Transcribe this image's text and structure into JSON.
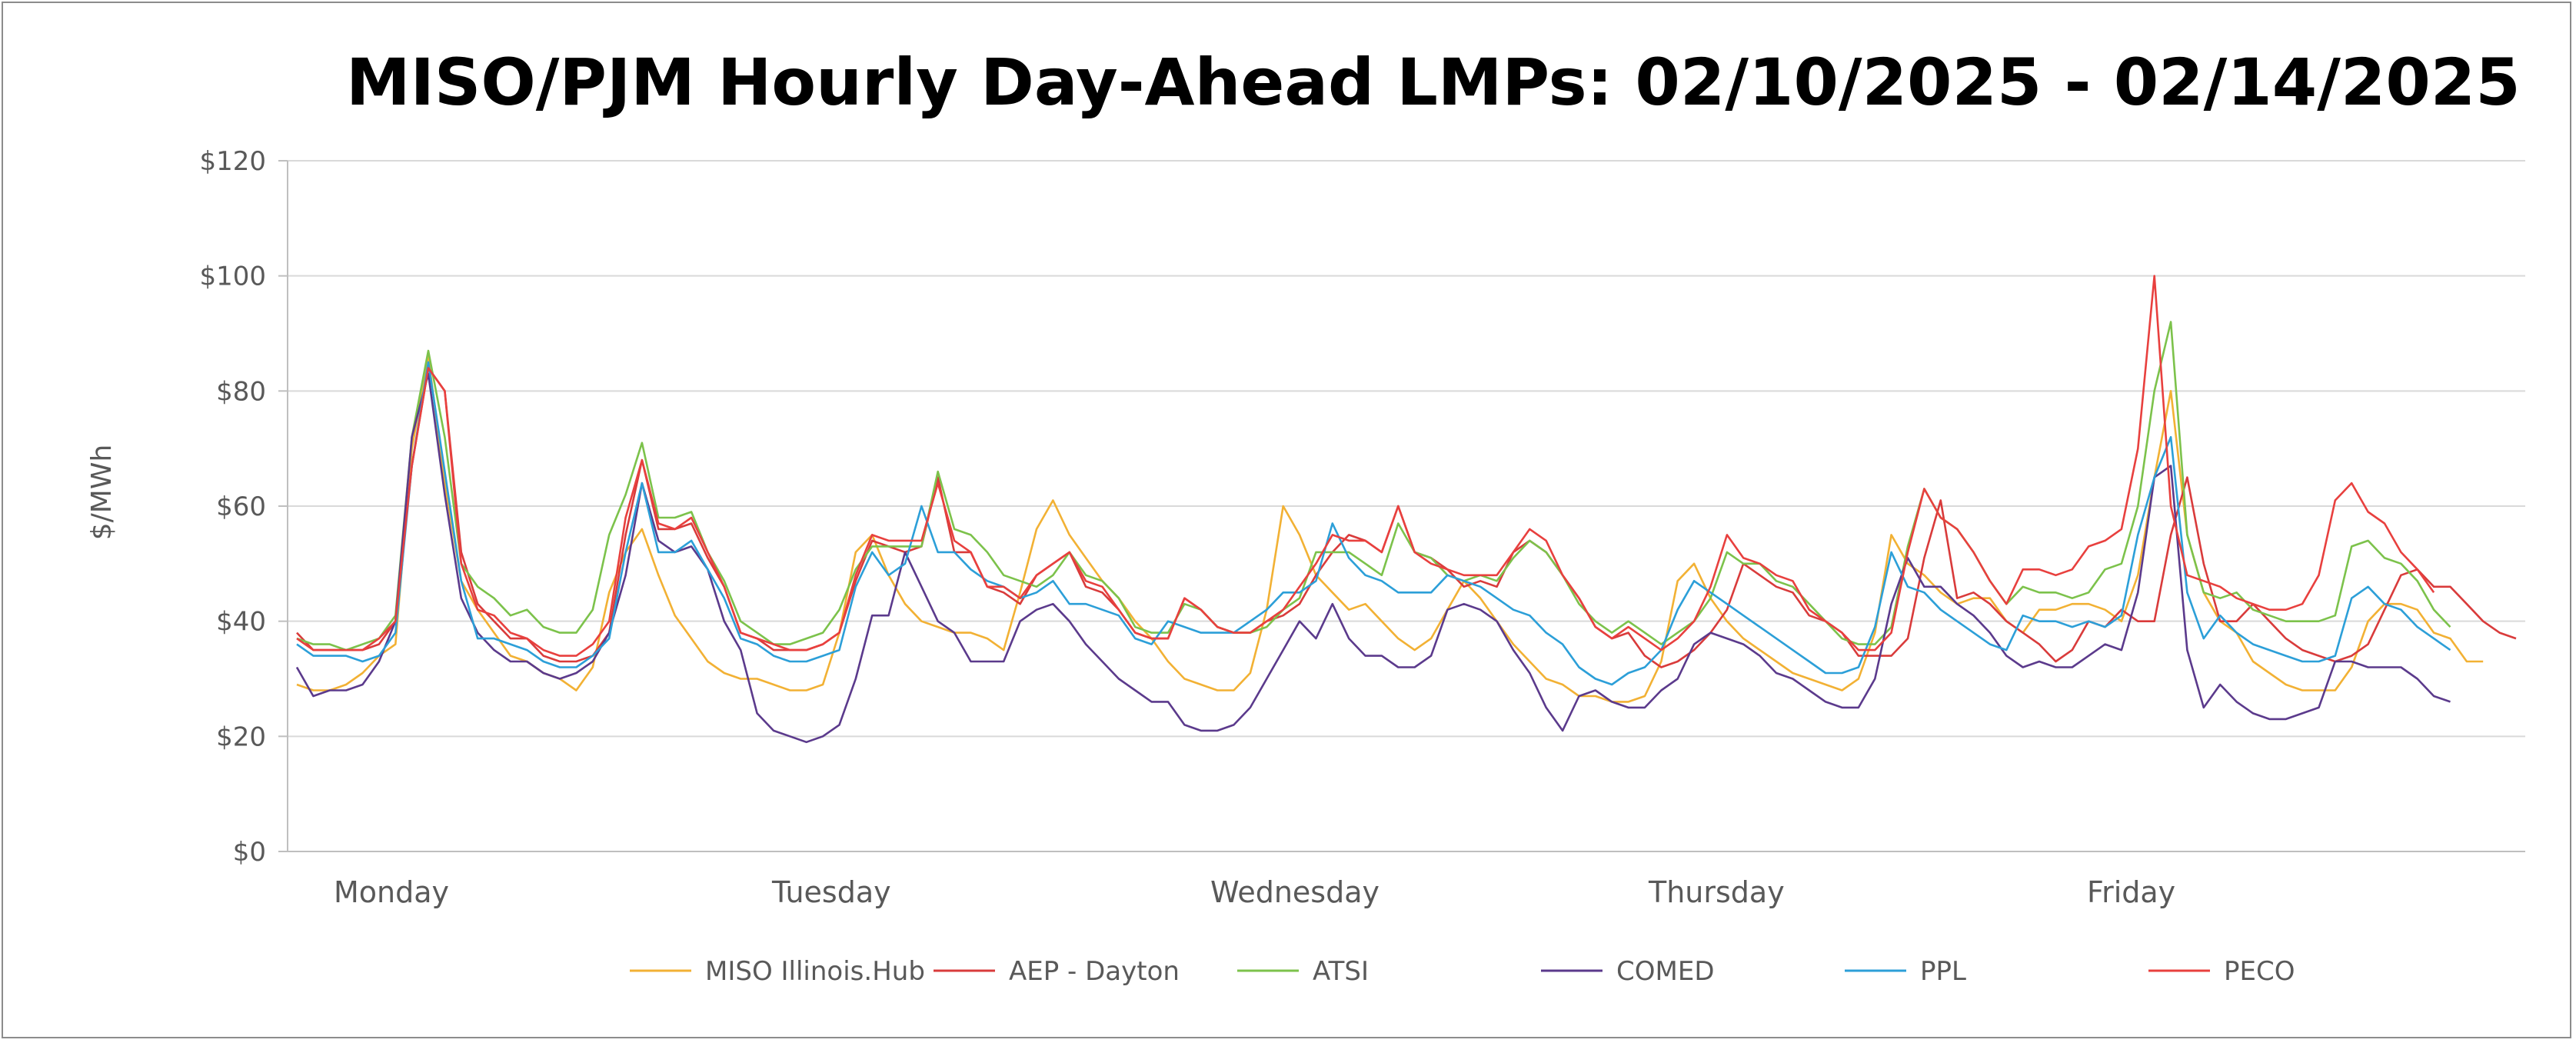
{
  "chart_data": {
    "type": "line",
    "title": "MISO/PJM Hourly Day-Ahead LMPs: 02/10/2025 - 02/14/2025",
    "ylabel": "$/MWh",
    "xlabel": "",
    "ylim": [
      0,
      120
    ],
    "yticks": [
      0,
      20,
      40,
      60,
      80,
      100,
      120
    ],
    "ytick_labels": [
      "$0",
      "$20",
      "$40",
      "$60",
      "$80",
      "$100",
      "$120"
    ],
    "day_labels": [
      "Monday",
      "Tuesday",
      "Wednesday",
      "Thursday",
      "Friday"
    ],
    "x_hours": 120,
    "grid": true,
    "legend_position": "bottom",
    "series": [
      {
        "name": "MISO Illinois.Hub",
        "color": "#F2B134",
        "values": [
          29,
          28,
          28,
          29,
          31,
          34,
          36,
          70,
          86,
          64,
          47,
          42,
          38,
          34,
          33,
          31,
          30,
          28,
          32,
          45,
          52,
          56,
          48,
          41,
          37,
          33,
          31,
          30,
          30,
          29,
          28,
          28,
          29,
          38,
          52,
          55,
          48,
          43,
          40,
          39,
          38,
          38,
          37,
          35,
          45,
          56,
          61,
          55,
          51,
          47,
          44,
          40,
          37,
          33,
          30,
          29,
          28,
          28,
          31,
          42,
          60,
          55,
          48,
          45,
          42,
          43,
          40,
          37,
          35,
          37,
          42,
          47,
          44,
          40,
          36,
          33,
          30,
          29,
          27,
          27,
          26,
          26,
          27,
          33,
          47,
          50,
          44,
          40,
          37,
          35,
          33,
          31,
          30,
          29,
          28,
          30,
          38,
          55,
          50,
          48,
          45,
          43,
          44,
          44,
          40,
          38,
          42,
          42,
          43,
          43,
          42,
          40,
          48,
          65,
          80,
          55,
          45,
          40,
          38,
          33,
          31,
          29,
          28,
          28,
          28,
          32,
          40,
          43,
          43,
          42,
          38,
          37,
          33,
          33
        ]
      },
      {
        "name": "AEP - Dayton",
        "color": "#D93B3B",
        "values": [
          38,
          35,
          35,
          35,
          35,
          36,
          40,
          67,
          84,
          80,
          52,
          43,
          40,
          37,
          37,
          34,
          33,
          33,
          34,
          38,
          55,
          68,
          56,
          56,
          57,
          51,
          46,
          38,
          37,
          35,
          35,
          35,
          36,
          38,
          47,
          54,
          53,
          52,
          53,
          65,
          52,
          52,
          46,
          45,
          43,
          48,
          50,
          52,
          46,
          45,
          42,
          38,
          37,
          37,
          44,
          42,
          39,
          38,
          38,
          40,
          41,
          43,
          48,
          52,
          55,
          54,
          52,
          60,
          52,
          51,
          49,
          46,
          47,
          46,
          52,
          54,
          52,
          48,
          44,
          39,
          37,
          38,
          34,
          32,
          33,
          35,
          38,
          42,
          50,
          48,
          46,
          45,
          41,
          40,
          38,
          34,
          34,
          34,
          37,
          51,
          61,
          44,
          45,
          43,
          40,
          38,
          36,
          33,
          35,
          40,
          39,
          42,
          40,
          40,
          55,
          65,
          50,
          40,
          40,
          43,
          40,
          37,
          35,
          34,
          33,
          34,
          36,
          42,
          48,
          49,
          46,
          46,
          43,
          40,
          38,
          37
        ]
      },
      {
        "name": "ATSI",
        "color": "#7CC24B",
        "values": [
          37,
          36,
          36,
          35,
          36,
          37,
          41,
          72,
          87,
          72,
          50,
          46,
          44,
          41,
          42,
          39,
          38,
          38,
          42,
          55,
          62,
          71,
          58,
          58,
          59,
          52,
          47,
          40,
          38,
          36,
          36,
          37,
          38,
          42,
          49,
          53,
          53,
          53,
          53,
          66,
          56,
          55,
          52,
          48,
          47,
          46,
          48,
          52,
          48,
          47,
          44,
          39,
          38,
          38,
          43,
          42,
          39,
          38,
          38,
          39,
          42,
          44,
          52,
          52,
          52,
          50,
          48,
          57,
          52,
          51,
          48,
          47,
          48,
          47,
          51,
          54,
          52,
          48,
          43,
          40,
          38,
          40,
          38,
          36,
          38,
          40,
          44,
          52,
          50,
          50,
          47,
          46,
          43,
          40,
          37,
          36,
          36,
          39,
          53,
          63,
          58,
          56,
          52,
          47,
          43,
          46,
          45,
          45,
          44,
          45,
          49,
          50,
          60,
          80,
          92,
          55,
          45,
          44,
          45,
          42,
          41,
          40,
          40,
          40,
          41,
          53,
          54,
          51,
          50,
          47,
          42,
          39
        ]
      },
      {
        "name": "COMED",
        "color": "#5B3A8C",
        "values": [
          32,
          27,
          28,
          28,
          29,
          33,
          40,
          72,
          83,
          62,
          44,
          38,
          35,
          33,
          33,
          31,
          30,
          31,
          33,
          38,
          48,
          64,
          54,
          52,
          53,
          49,
          40,
          35,
          24,
          21,
          20,
          19,
          20,
          22,
          30,
          41,
          41,
          52,
          46,
          40,
          38,
          33,
          33,
          33,
          40,
          42,
          43,
          40,
          36,
          33,
          30,
          28,
          26,
          26,
          22,
          21,
          21,
          22,
          25,
          30,
          35,
          40,
          37,
          43,
          37,
          34,
          34,
          32,
          32,
          34,
          42,
          43,
          42,
          40,
          35,
          31,
          25,
          21,
          27,
          28,
          26,
          25,
          25,
          28,
          30,
          36,
          38,
          37,
          36,
          34,
          31,
          30,
          28,
          26,
          25,
          25,
          30,
          43,
          51,
          46,
          46,
          43,
          41,
          38,
          34,
          32,
          33,
          32,
          32,
          34,
          36,
          35,
          45,
          65,
          67,
          35,
          25,
          29,
          26,
          24,
          23,
          23,
          24,
          25,
          33,
          33,
          32,
          32,
          32,
          30,
          27,
          26
        ]
      },
      {
        "name": "PPL",
        "color": "#2C9FD8",
        "values": [
          36,
          34,
          34,
          34,
          33,
          34,
          38,
          67,
          85,
          66,
          47,
          37,
          37,
          36,
          35,
          33,
          32,
          32,
          34,
          37,
          52,
          64,
          52,
          52,
          54,
          49,
          44,
          37,
          36,
          34,
          33,
          33,
          34,
          35,
          46,
          52,
          48,
          50,
          60,
          52,
          52,
          49,
          47,
          46,
          44,
          45,
          47,
          43,
          43,
          42,
          41,
          37,
          36,
          40,
          39,
          38,
          38,
          38,
          40,
          42,
          45,
          45,
          47,
          57,
          51,
          48,
          47,
          45,
          45,
          45,
          48,
          47,
          46,
          44,
          42,
          41,
          38,
          36,
          32,
          30,
          29,
          31,
          32,
          35,
          42,
          47,
          45,
          43,
          41,
          39,
          37,
          35,
          33,
          31,
          31,
          32,
          39,
          52,
          46,
          45,
          42,
          40,
          38,
          36,
          35,
          41,
          40,
          40,
          39,
          40,
          39,
          41,
          55,
          65,
          72,
          45,
          37,
          41,
          38,
          36,
          35,
          34,
          33,
          33,
          34,
          44,
          46,
          43,
          42,
          39,
          37,
          35
        ]
      },
      {
        "name": "PECO",
        "color": "#E8403E",
        "values": [
          37,
          35,
          35,
          35,
          35,
          37,
          40,
          67,
          84,
          80,
          50,
          42,
          41,
          38,
          37,
          35,
          34,
          34,
          36,
          40,
          58,
          68,
          57,
          56,
          58,
          52,
          46,
          38,
          37,
          36,
          35,
          35,
          36,
          38,
          48,
          55,
          54,
          54,
          54,
          64,
          54,
          52,
          46,
          46,
          44,
          48,
          50,
          52,
          47,
          46,
          42,
          38,
          37,
          37,
          44,
          42,
          39,
          38,
          38,
          40,
          42,
          46,
          50,
          55,
          54,
          54,
          52,
          60,
          52,
          50,
          49,
          48,
          48,
          48,
          52,
          56,
          54,
          48,
          44,
          39,
          37,
          39,
          37,
          35,
          37,
          40,
          46,
          55,
          51,
          50,
          48,
          47,
          42,
          40,
          38,
          35,
          35,
          38,
          52,
          63,
          58,
          56,
          52,
          47,
          43,
          49,
          49,
          48,
          49,
          53,
          54,
          56,
          70,
          100,
          60,
          48,
          47,
          46,
          44,
          43,
          42,
          42,
          43,
          48,
          61,
          64,
          59,
          57,
          52,
          49,
          45
        ]
      }
    ],
    "legend": [
      "MISO Illinois.Hub",
      "AEP - Dayton",
      "ATSI",
      "COMED",
      "PPL",
      "PECO"
    ]
  }
}
